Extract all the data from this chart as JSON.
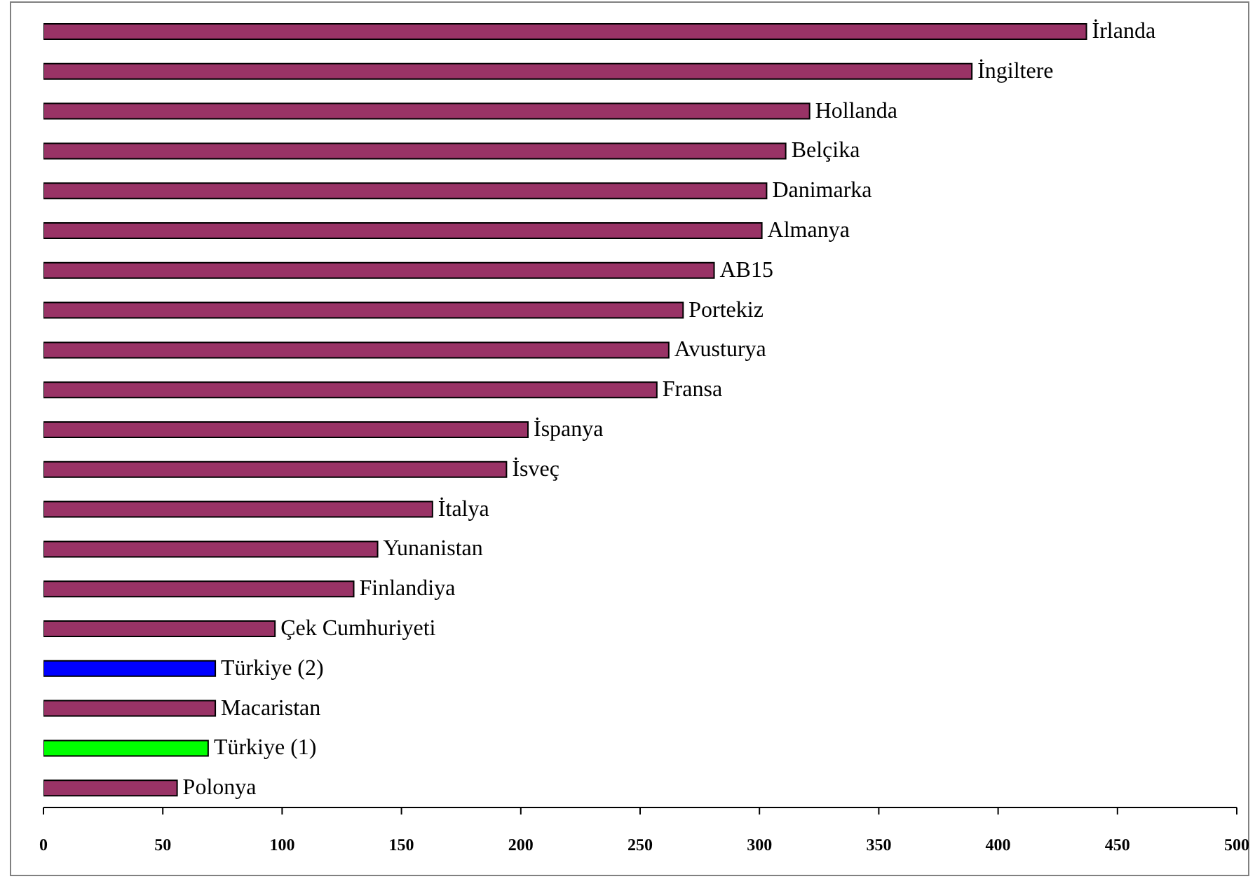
{
  "chart_data": {
    "type": "bar",
    "orientation": "horizontal",
    "categories": [
      "İrlanda",
      "İngiltere",
      "Hollanda",
      "Belçika",
      "Danimarka",
      "Almanya",
      "AB15",
      "Portekiz",
      "Avusturya",
      "Fransa",
      "İspanya",
      "İsveç",
      "İtalya",
      "Yunanistan",
      "Finlandiya",
      "Çek Cumhuriyeti",
      "Türkiye (2)",
      "Macaristan",
      "Türkiye (1)",
      "Polonya"
    ],
    "values": [
      437,
      389,
      321,
      311,
      303,
      301,
      281,
      268,
      262,
      257,
      203,
      194,
      163,
      140,
      130,
      97,
      72,
      72,
      69,
      56
    ],
    "colors": [
      "#993366",
      "#993366",
      "#993366",
      "#993366",
      "#993366",
      "#993366",
      "#993366",
      "#993366",
      "#993366",
      "#993366",
      "#993366",
      "#993366",
      "#993366",
      "#993366",
      "#993366",
      "#993366",
      "#0000ff",
      "#993366",
      "#00ff00",
      "#993366"
    ],
    "xlim": [
      0,
      500
    ],
    "xticks": [
      0,
      50,
      100,
      150,
      200,
      250,
      300,
      350,
      400,
      450,
      500
    ]
  }
}
